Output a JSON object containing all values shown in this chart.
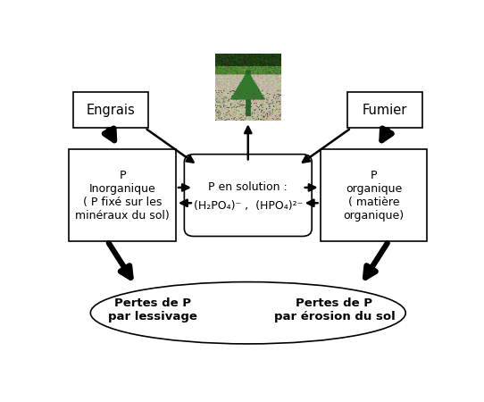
{
  "bg_color": "#ffffff",
  "text_color": "#000000",
  "figsize": [
    5.42,
    4.5
  ],
  "dpi": 100,
  "engrais_label": "Engrais",
  "fumier_label": "Fumier",
  "inorg_label": "P\nInorganique\n( P fixé sur les\nminéraux du sol)",
  "org_label": "P\norganique\n( matière\norganique)",
  "sol_label_line1": "P en solution :",
  "sol_label_line2": "(H₂PO₄)⁻ ,  (HPO₄)²⁻",
  "loss_left_label": "Pertes de P\npar lessivage",
  "loss_right_label": "Pertes de P\npar érosion du sol"
}
